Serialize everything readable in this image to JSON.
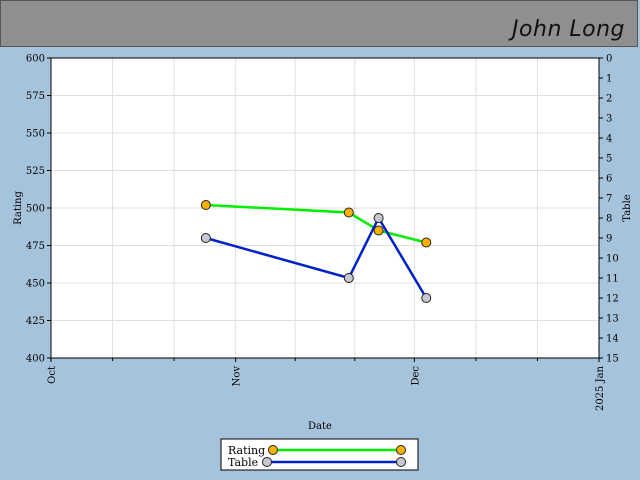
{
  "header": {
    "title": "John Long"
  },
  "colors": {
    "header_bg": "#8f8f8f",
    "page_bg": "#a6c3dc",
    "rating_line": "#00ee00",
    "rating_marker": "#ffb000",
    "table_line": "#0020cc",
    "table_marker": "#c8c8d2"
  },
  "chart_data": {
    "type": "line",
    "title": "",
    "xlabel": "Date",
    "ylabel": "Rating",
    "y2label": "Table",
    "ylim": [
      400,
      600
    ],
    "y2lim": [
      15,
      0
    ],
    "yticks": [
      "400",
      "425",
      "450",
      "475",
      "500",
      "525",
      "550",
      "575",
      "600"
    ],
    "y2ticks": [
      "0",
      "1",
      "2",
      "3",
      "4",
      "5",
      "6",
      "7",
      "8",
      "9",
      "10",
      "11",
      "12",
      "13",
      "14",
      "15"
    ],
    "xlim": [
      "2024-10-01",
      "2025-01-01"
    ],
    "xticks": [
      {
        "date": "2024-10-01",
        "label": "Oct"
      },
      {
        "date": "2024-11-01",
        "label": "Nov"
      },
      {
        "date": "2024-12-01",
        "label": "Dec"
      },
      {
        "date": "2025-01-01",
        "label": "2025 Jan"
      }
    ],
    "grid": true,
    "legend": "bottom-center",
    "series": [
      {
        "name": "Rating",
        "axis": "left",
        "x": [
          "2024-10-27",
          "2024-11-20",
          "2024-11-25",
          "2024-12-03"
        ],
        "y": [
          502,
          497,
          485,
          477
        ]
      },
      {
        "name": "Table",
        "axis": "right",
        "x": [
          "2024-10-27",
          "2024-11-20",
          "2024-11-25",
          "2024-12-03"
        ],
        "y": [
          9,
          11,
          8,
          12
        ]
      }
    ]
  }
}
